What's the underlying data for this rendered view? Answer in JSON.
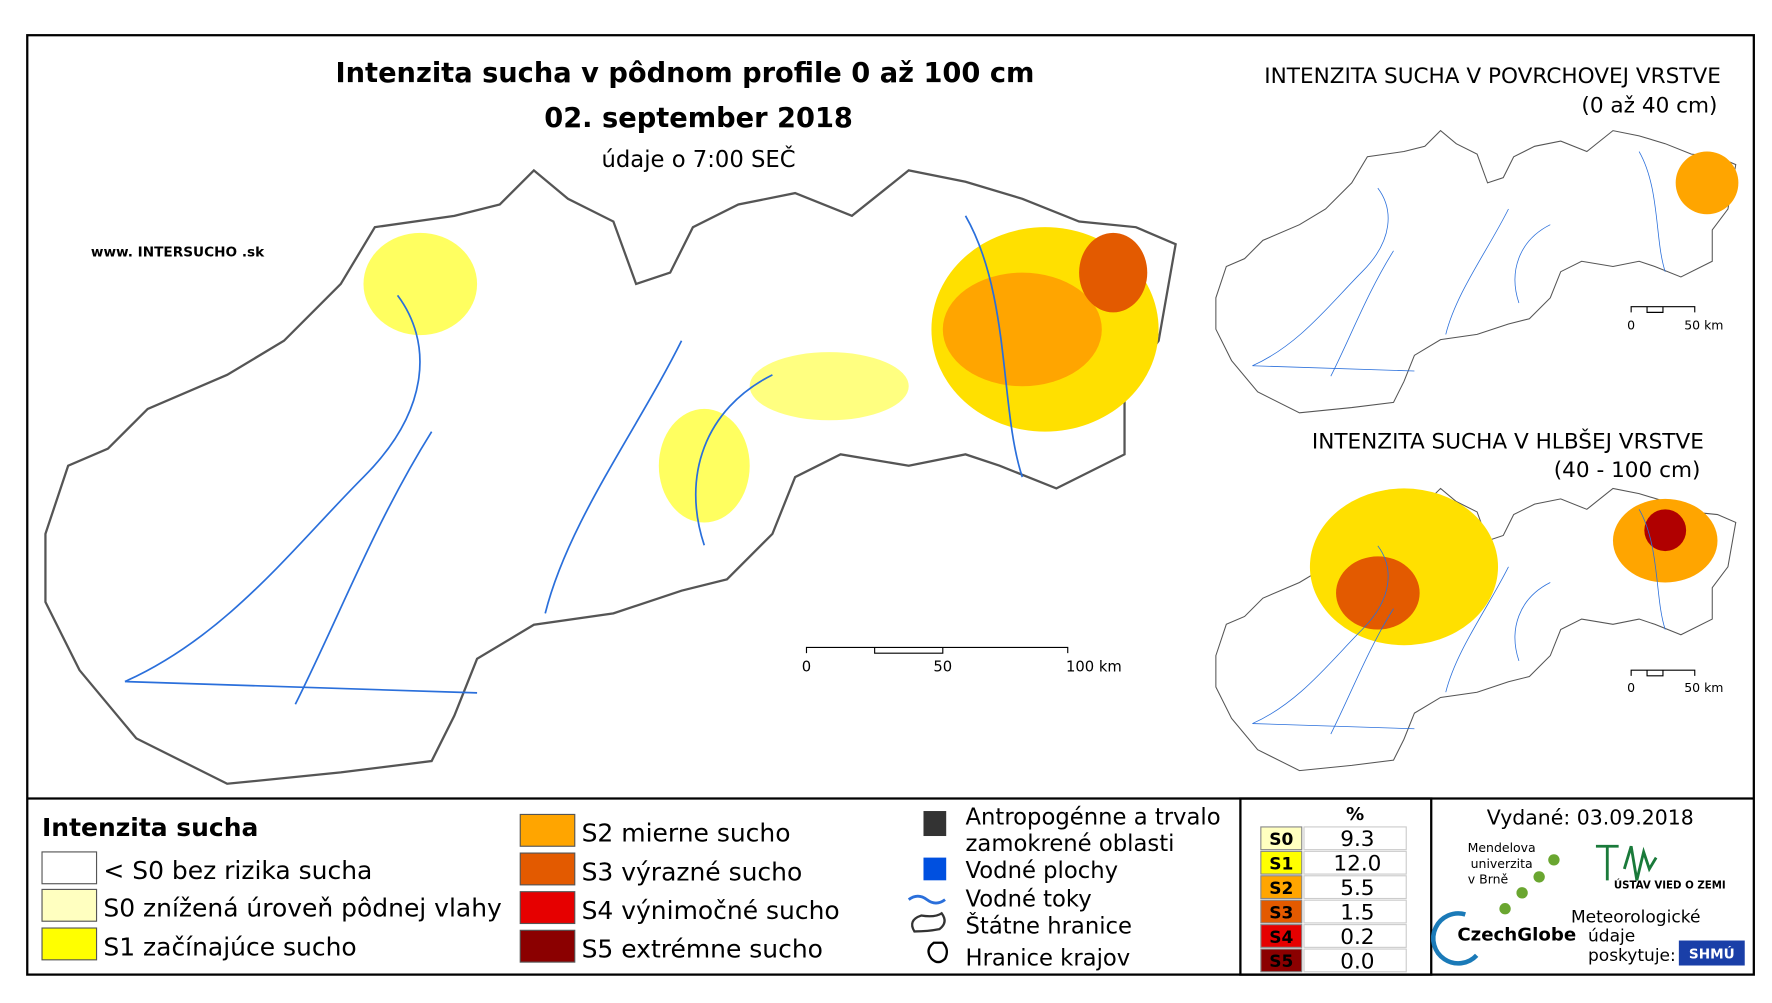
{
  "header": {
    "title": "Intenzita sucha v pôdnom profile 0 až 100 cm",
    "date": "02. september 2018",
    "subtitle": "údaje o 7:00 SEČ",
    "website": "www. INTERSUCHO .sk"
  },
  "main_map": {
    "scale": [
      "0",
      "50",
      "100 km"
    ]
  },
  "insets": [
    {
      "title": "INTENZITA SUCHA V POVRCHOVEJ VRSTVE",
      "subtitle": "(0 až 40 cm)",
      "scale": [
        "0",
        "50 km"
      ]
    },
    {
      "title": "INTENZITA SUCHA V HLBŠEJ VRSTVE",
      "subtitle": "(40 - 100 cm)",
      "scale": [
        "0",
        "50 km"
      ]
    }
  ],
  "legend": {
    "title": "Intenzita sucha",
    "items": [
      {
        "label": "< S0 bez rizika sucha",
        "color": "#ffffff"
      },
      {
        "label": "S0 znížená úroveň pôdnej vlahy",
        "color": "#ffffc0"
      },
      {
        "label": "S1 začínajúce sucho",
        "color": "#ffff00"
      },
      {
        "label": "S2 mierne sucho",
        "color": "#ffa500"
      },
      {
        "label": "S3 výrazné sucho",
        "color": "#e35a00"
      },
      {
        "label": "S4 výnimočné sucho",
        "color": "#e60000"
      },
      {
        "label": "S5 extrémne sucho",
        "color": "#8b0000"
      }
    ]
  },
  "symbols": [
    "Antropogénne a trvalo",
    "zamokrené oblasti",
    "Vodné plochy",
    "Vodné toky",
    "Štátne hranice",
    "Hranice krajov"
  ],
  "table": {
    "header": "%",
    "rows": [
      [
        "S0",
        "9.3"
      ],
      [
        "S1",
        "12.0"
      ],
      [
        "S2",
        "5.5"
      ],
      [
        "S3",
        "1.5"
      ],
      [
        "S4",
        "0.2"
      ],
      [
        "S5",
        "0.0"
      ]
    ]
  },
  "issued": "Vydané: 03.09.2018",
  "logos": {
    "mendel": [
      "Mendelova",
      "univerzita",
      "v Brně"
    ],
    "czechglobe": "CzechGlobe",
    "ustav": "ÚSTAV VIED O ZEMI",
    "meteo": [
      "Meteorologické",
      "údaje",
      "poskytuje:"
    ],
    "shmu": "SHMÚ"
  }
}
